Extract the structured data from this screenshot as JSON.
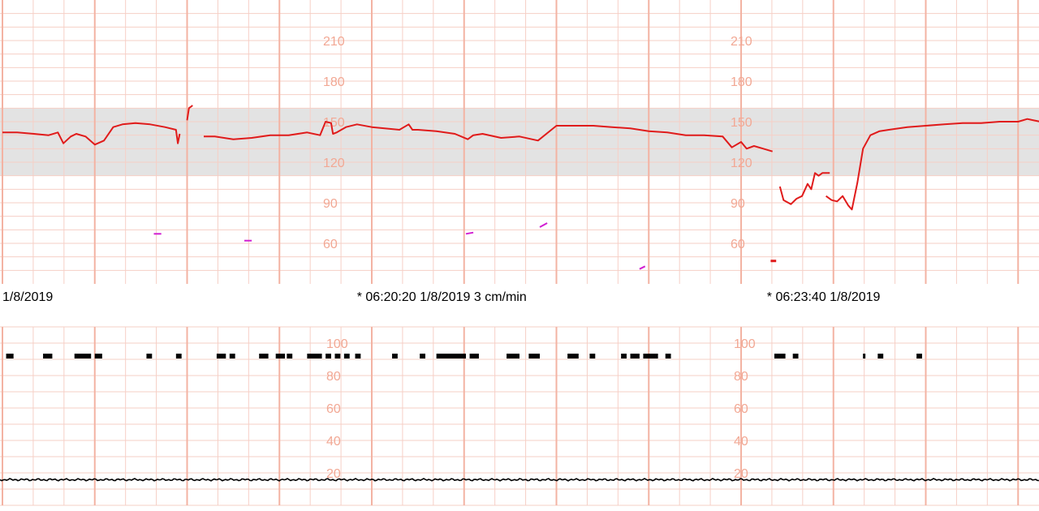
{
  "chart_data": [
    {
      "type": "line",
      "panel": "fetal-heart-rate",
      "ylim": [
        30,
        240
      ],
      "yticks": [
        60,
        90,
        120,
        150,
        180,
        210
      ],
      "tick_label_sets": 3,
      "normal_band": [
        110,
        160
      ],
      "x_range_min": [
        0,
        5
      ],
      "baseline_label": "1/8/2019",
      "timestamps": [
        {
          "text": "* 06:20:20 1/8/2019  3 cm/min",
          "x_min": 1.99
        },
        {
          "text": "* 06:23:40 1/8/2019",
          "x_min": 4.21
        }
      ],
      "series": [
        {
          "color": "#e01b1b",
          "segments": [
            {
              "x": [
                0.0,
                0.08,
                0.17,
                0.25,
                0.3,
                0.33,
                0.37,
                0.4,
                0.45,
                0.5,
                0.55,
                0.6,
                0.65,
                0.72,
                0.8,
                0.88,
                0.94,
                0.95,
                0.96
              ],
              "y": [
                142,
                142,
                141,
                140,
                142,
                134,
                139,
                141,
                139,
                133,
                136,
                146,
                148,
                149,
                148,
                146,
                144,
                134,
                141
              ]
            },
            {
              "x": [
                1.0,
                1.01,
                1.03
              ],
              "y": [
                151,
                160,
                162
              ]
            },
            {
              "x": [
                1.09,
                1.15,
                1.25,
                1.35,
                1.45,
                1.55,
                1.65,
                1.72,
                1.75,
                1.78,
                1.79,
                1.81,
                1.86,
                1.92,
                2.0,
                2.07,
                2.15,
                2.2,
                2.22,
                2.25,
                2.35,
                2.45,
                2.52,
                2.55,
                2.6,
                2.7,
                2.8,
                2.9,
                3.0,
                3.1,
                3.2,
                3.3,
                3.4,
                3.5,
                3.6,
                3.7,
                3.8,
                3.9,
                3.95,
                4.0,
                4.03,
                4.07,
                4.12,
                4.17
              ],
              "y": [
                139,
                139,
                137,
                138,
                140,
                140,
                142,
                140,
                150,
                149,
                141,
                142,
                146,
                148,
                146,
                145,
                144,
                148,
                144,
                144,
                143,
                141,
                137,
                140,
                141,
                138,
                139,
                136,
                147,
                147,
                147,
                146,
                145,
                143,
                142,
                140,
                140,
                139,
                131,
                135,
                130,
                132,
                130,
                128
              ]
            },
            {
              "x": [
                4.21,
                4.23,
                4.27,
                4.3,
                4.33,
                4.36,
                4.38,
                4.4,
                4.42,
                4.44,
                4.48
              ],
              "y": [
                102,
                92,
                89,
                93,
                95,
                104,
                100,
                112,
                110,
                112,
                112
              ]
            },
            {
              "x": [
                4.46,
                4.49,
                4.52,
                4.55,
                4.58,
                4.6,
                4.63,
                4.66,
                4.7,
                4.75,
                4.8,
                4.9,
                5.0,
                5.1,
                5.2,
                5.3,
                5.4,
                5.5,
                5.55,
                5.62
              ],
              "y": [
                95,
                92,
                91,
                95,
                88,
                85,
                105,
                130,
                140,
                143,
                144,
                146,
                147,
                148,
                149,
                149,
                150,
                150,
                152,
                150
              ]
            }
          ]
        },
        {
          "color": "#d11ed1",
          "segments": [
            {
              "x": [
                0.82,
                0.86
              ],
              "y": [
                67,
                67
              ]
            },
            {
              "x": [
                1.31,
                1.35
              ],
              "y": [
                62,
                62
              ]
            },
            {
              "x": [
                2.51,
                2.55
              ],
              "y": [
                67,
                68
              ]
            },
            {
              "x": [
                2.91,
                2.95
              ],
              "y": [
                72,
                75
              ]
            },
            {
              "x": [
                3.45,
                3.48
              ],
              "y": [
                41,
                43
              ]
            }
          ]
        }
      ],
      "marks": [
        {
          "color": "#e01b1b",
          "x": [
            4.16,
            4.19
          ],
          "y": [
            47,
            47
          ]
        }
      ]
    },
    {
      "type": "line",
      "panel": "uterine-activity",
      "ylim": [
        0,
        110
      ],
      "yticks": [
        20,
        40,
        60,
        80,
        100
      ],
      "tick_label_sets": 3,
      "x_range_min": [
        0,
        5.62
      ],
      "event_marker_value": 92,
      "event_marks_min": [
        [
          0.02,
          0.06
        ],
        [
          0.22,
          0.27
        ],
        [
          0.39,
          0.48
        ],
        [
          0.5,
          0.54
        ],
        [
          0.78,
          0.81
        ],
        [
          0.94,
          0.97
        ],
        [
          1.16,
          1.21
        ],
        [
          1.23,
          1.26
        ],
        [
          1.39,
          1.44
        ],
        [
          1.48,
          1.53
        ],
        [
          1.54,
          1.57
        ],
        [
          1.65,
          1.73
        ],
        [
          1.75,
          1.78
        ],
        [
          1.8,
          1.83
        ],
        [
          1.85,
          1.88
        ],
        [
          1.91,
          1.94
        ],
        [
          2.11,
          2.14
        ],
        [
          2.26,
          2.29
        ],
        [
          2.35,
          2.51
        ],
        [
          2.53,
          2.58
        ],
        [
          2.73,
          2.8
        ],
        [
          2.85,
          2.91
        ],
        [
          3.06,
          3.12
        ],
        [
          3.18,
          3.21
        ],
        [
          3.35,
          3.38
        ],
        [
          3.4,
          3.45
        ],
        [
          3.47,
          3.55
        ],
        [
          3.59,
          3.62
        ],
        [
          4.18,
          4.24
        ],
        [
          4.28,
          4.31
        ],
        [
          4.66,
          4.67
        ],
        [
          4.74,
          4.77
        ],
        [
          4.95,
          4.98
        ]
      ],
      "series": [
        {
          "color": "#000000",
          "level": 15.8,
          "x": [
            0,
            5.62
          ]
        }
      ]
    }
  ]
}
